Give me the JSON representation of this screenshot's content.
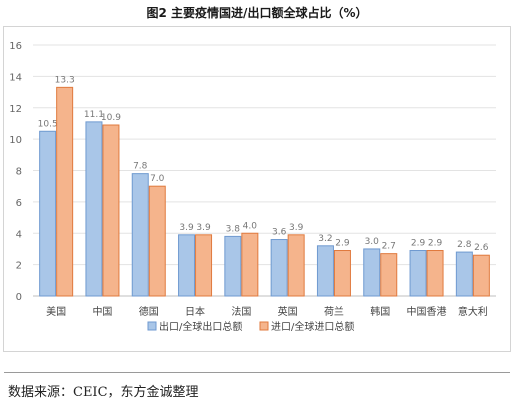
{
  "title": "图2 主要疫情国进/出口额全球占比（%）",
  "source": "数据来源：CEIC，东方金诚整理",
  "colors": {
    "export_fill": "#a9c6e8",
    "export_stroke": "#6f9ad0",
    "import_fill": "#f5b48c",
    "import_stroke": "#e07a3e"
  },
  "chart_data": {
    "type": "bar",
    "title": "图2 主要疫情国进/出口额全球占比（%）",
    "categories": [
      "美国",
      "中国",
      "德国",
      "日本",
      "法国",
      "英国",
      "荷兰",
      "韩国",
      "中国香港",
      "意大利"
    ],
    "series": [
      {
        "name": "出口/全球出口总额",
        "values": [
          10.5,
          11.1,
          7.8,
          3.9,
          3.8,
          3.6,
          3.2,
          3.0,
          2.9,
          2.8
        ]
      },
      {
        "name": "进口/全球进口总额",
        "values": [
          13.3,
          10.9,
          7.0,
          3.9,
          4.0,
          3.9,
          2.9,
          2.7,
          2.9,
          2.6
        ]
      }
    ],
    "value_labels": [
      [
        "10.5",
        "11.1",
        "7.8",
        "3.9",
        "3.8",
        "3.6",
        "3.2",
        "3.0",
        "2.9",
        "2.8"
      ],
      [
        "13.3",
        "10.9",
        "7.0",
        "3.9",
        "4.0",
        "3.9",
        "2.9",
        "2.7",
        "2.9",
        "2.6"
      ]
    ],
    "yticks": [
      "0",
      "2",
      "4",
      "6",
      "8",
      "10",
      "12",
      "14",
      "16"
    ],
    "ylim": [
      0,
      16
    ],
    "xlabel": "",
    "ylabel": "",
    "grid": true,
    "legend": "bottom"
  }
}
